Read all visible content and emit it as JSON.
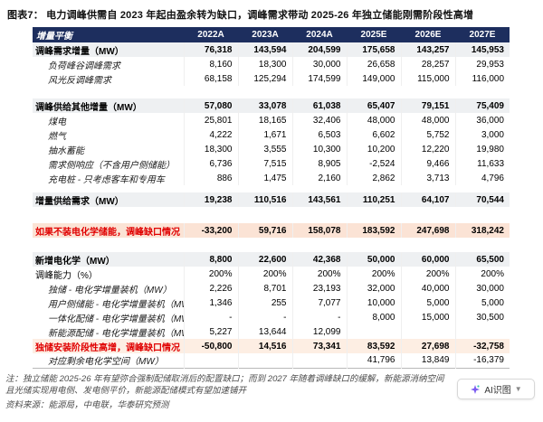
{
  "title": "图表7：  电力调峰供需自 2023 年起由盈余转为缺口，调峰需求带动 2025-26 年独立储能刚需阶段性高增",
  "colors": {
    "header_bg": "#1d2e5e",
    "section_band": "#eef0f2",
    "peach_band": "#fbe3d5",
    "light_peach_band": "#fdeee3",
    "red_text": "#e00000"
  },
  "table": {
    "header": [
      "增量平衡",
      "2022A",
      "2023A",
      "2024A",
      "2025E",
      "2026E",
      "2027E"
    ],
    "rows": [
      {
        "type": "section",
        "label": "调峰需求增量（MW）",
        "values": [
          "76,318",
          "143,594",
          "204,599",
          "175,658",
          "143,257",
          "145,953"
        ]
      },
      {
        "type": "sub",
        "label": "负荷峰谷调峰需求",
        "values": [
          "8,160",
          "18,300",
          "30,000",
          "26,658",
          "28,257",
          "29,953"
        ]
      },
      {
        "type": "sub",
        "label": "风光反调峰需求",
        "values": [
          "68,158",
          "125,294",
          "174,599",
          "149,000",
          "115,000",
          "116,000"
        ]
      },
      {
        "type": "spacer",
        "size": "md"
      },
      {
        "type": "section",
        "label": "调峰供给其他增量（MW）",
        "values": [
          "57,080",
          "33,078",
          "61,038",
          "65,407",
          "79,151",
          "75,409"
        ]
      },
      {
        "type": "sub",
        "label": "煤电",
        "values": [
          "25,801",
          "18,165",
          "32,406",
          "48,000",
          "48,000",
          "36,000"
        ]
      },
      {
        "type": "sub",
        "label": "燃气",
        "values": [
          "4,222",
          "1,671",
          "6,503",
          "6,602",
          "5,752",
          "3,000"
        ]
      },
      {
        "type": "sub",
        "label": "抽水蓄能",
        "values": [
          "18,300",
          "3,555",
          "10,300",
          "10,200",
          "12,220",
          "19,980"
        ]
      },
      {
        "type": "sub",
        "label": "需求侧响应（不含用户侧储能）",
        "values": [
          "6,736",
          "7,515",
          "8,905",
          "-2,524",
          "9,466",
          "11,633"
        ]
      },
      {
        "type": "sub",
        "label": "充电桩 - 只考虑客车和专用车",
        "values": [
          "886",
          "1,475",
          "2,160",
          "2,862",
          "3,713",
          "4,796"
        ]
      },
      {
        "type": "spacer",
        "size": "sm"
      },
      {
        "type": "section",
        "label": "增量供给需求（MW）",
        "values": [
          "19,238",
          "110,516",
          "143,561",
          "110,251",
          "64,107",
          "70,544"
        ]
      },
      {
        "type": "spacer",
        "size": "lg"
      },
      {
        "type": "peach",
        "label": "如果不装电化学储能，调峰缺口情况（MW）",
        "values": [
          "-33,200",
          "59,716",
          "158,078",
          "183,592",
          "247,698",
          "318,242"
        ]
      },
      {
        "type": "spacer",
        "size": "xl"
      },
      {
        "type": "section",
        "label": "新增电化学（MW）",
        "values": [
          "8,800",
          "22,600",
          "42,368",
          "50,000",
          "60,000",
          "65,500"
        ]
      },
      {
        "type": "plain",
        "label": "调峰能力（%）",
        "values": [
          "200%",
          "200%",
          "200%",
          "200%",
          "200%",
          "200%"
        ]
      },
      {
        "type": "sub",
        "label": "独储 - 电化学增量装机（MW）",
        "values": [
          "2,226",
          "8,701",
          "23,193",
          "32,000",
          "40,000",
          "30,000"
        ]
      },
      {
        "type": "sub",
        "label": "用户侧储能 - 电化学增量装机（MW）",
        "values": [
          "1,346",
          "255",
          "7,077",
          "10,000",
          "5,000",
          "5,000"
        ]
      },
      {
        "type": "sub",
        "label": "一体化配储 - 电化学增量装机（MW）",
        "values": [
          "-",
          "-",
          "-",
          "8,000",
          "15,000",
          "30,500"
        ]
      },
      {
        "type": "sub",
        "label": "新能源配储 - 电化学增量装机（MW）",
        "values": [
          "5,227",
          "13,644",
          "12,099",
          "",
          "",
          ""
        ]
      },
      {
        "type": "highlight",
        "label": "独储安装阶段性高增，调峰缺口情况（MW）",
        "values": [
          "-50,800",
          "14,516",
          "73,341",
          "83,592",
          "27,698",
          "-32,758"
        ]
      },
      {
        "type": "sub",
        "label": "对应剩余电化学空间（MW）",
        "values": [
          "",
          "",
          "",
          "41,796",
          "13,849",
          "-16,379"
        ]
      }
    ]
  },
  "notes": [
    "注：独立储能 2025-26 年有望弥合强制配储取消后的配置缺口；而到 2027 年随着调峰缺口的缓解，新能源消纳空间",
    "且光储实现用电侧、发电侧平价，新能源配储模式有望加速铺开"
  ],
  "source": "资料来源：能源局，中电联，华泰研究预测",
  "ai_button": {
    "label": "AI识图",
    "icon": "sparkle-icon"
  }
}
